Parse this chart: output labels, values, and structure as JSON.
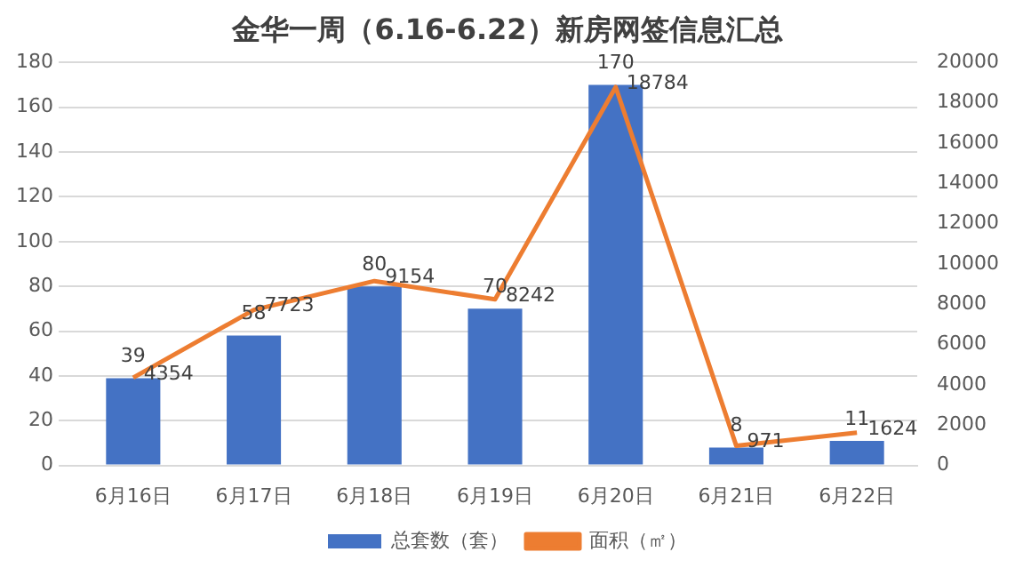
{
  "chart_data": {
    "type": "bar",
    "title": "金华一周（6.16-6.22）新房网签信息汇总",
    "categories": [
      "6月16日",
      "6月17日",
      "6月18日",
      "6月19日",
      "6月20日",
      "6月21日",
      "6月22日"
    ],
    "series": [
      {
        "name": "总套数（套）",
        "color": "#4472c4",
        "values": [
          39,
          58,
          80,
          70,
          170,
          8,
          11
        ]
      },
      {
        "name": "面积（㎡）",
        "type": "line",
        "axis": "y2",
        "color": "#ed7d31",
        "values": [
          4354,
          7723,
          9154,
          8242,
          18784,
          971,
          1624
        ]
      }
    ],
    "ylim": [
      0,
      180
    ],
    "yticks": [
      0,
      20,
      40,
      60,
      80,
      100,
      120,
      140,
      160,
      180
    ],
    "y2lim": [
      0,
      20000
    ],
    "y2ticks": [
      0,
      2000,
      4000,
      6000,
      8000,
      10000,
      12000,
      14000,
      16000,
      18000,
      20000
    ],
    "grid": "y",
    "legend": "bottom",
    "data_labels": true,
    "marker": "none",
    "line_style": "solid"
  }
}
